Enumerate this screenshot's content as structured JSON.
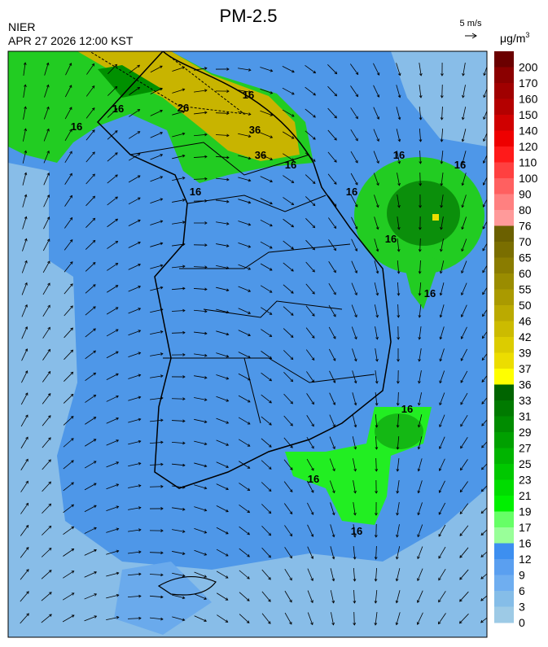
{
  "header": {
    "title": "PM-2.5",
    "agency": "NIER",
    "datetime": "APR 27 2026 12:00 KST"
  },
  "wind_reference": {
    "label": "5 m/s"
  },
  "colorbar": {
    "unit": "μg/m",
    "unit_superscript": "3",
    "top_color": "#6b0000",
    "levels": [
      {
        "label": "200",
        "color": "#8b0000"
      },
      {
        "label": "170",
        "color": "#a00000"
      },
      {
        "label": "160",
        "color": "#b40000"
      },
      {
        "label": "150",
        "color": "#d00000"
      },
      {
        "label": "140",
        "color": "#ee0000"
      },
      {
        "label": "120",
        "color": "#ff1a1a"
      },
      {
        "label": "110",
        "color": "#ff4040"
      },
      {
        "label": "100",
        "color": "#ff6060"
      },
      {
        "label": "90",
        "color": "#ff8080"
      },
      {
        "label": "80",
        "color": "#ff9a9a"
      },
      {
        "label": "76",
        "color": "#6b6000"
      },
      {
        "label": "70",
        "color": "#7a6e00"
      },
      {
        "label": "65",
        "color": "#8a7c00"
      },
      {
        "label": "60",
        "color": "#9a8c00"
      },
      {
        "label": "55",
        "color": "#aa9a00"
      },
      {
        "label": "50",
        "color": "#bbaa00"
      },
      {
        "label": "46",
        "color": "#ccbb00"
      },
      {
        "label": "42",
        "color": "#dccc00"
      },
      {
        "label": "39",
        "color": "#ecdd00"
      },
      {
        "label": "37",
        "color": "#ffff00"
      },
      {
        "label": "36",
        "color": "#006400"
      },
      {
        "label": "33",
        "color": "#007a00"
      },
      {
        "label": "31",
        "color": "#008c00"
      },
      {
        "label": "29",
        "color": "#00a000"
      },
      {
        "label": "27",
        "color": "#00b400"
      },
      {
        "label": "25",
        "color": "#00c800"
      },
      {
        "label": "23",
        "color": "#00dc00"
      },
      {
        "label": "21",
        "color": "#00f000"
      },
      {
        "label": "19",
        "color": "#66ff66"
      },
      {
        "label": "17",
        "color": "#99ff99"
      },
      {
        "label": "16",
        "color": "#3d8ff0"
      },
      {
        "label": "12",
        "color": "#5a9ff0"
      },
      {
        "label": "9",
        "color": "#6faef0"
      },
      {
        "label": "6",
        "color": "#85bde8"
      },
      {
        "label": "3",
        "color": "#9dcae6"
      },
      {
        "label": "0"
      }
    ]
  },
  "contour_labels": [
    "16",
    "26",
    "36",
    "16",
    "16",
    "36",
    "16",
    "16",
    "16",
    "16",
    "16",
    "16",
    "16",
    "16",
    "16",
    "16"
  ]
}
